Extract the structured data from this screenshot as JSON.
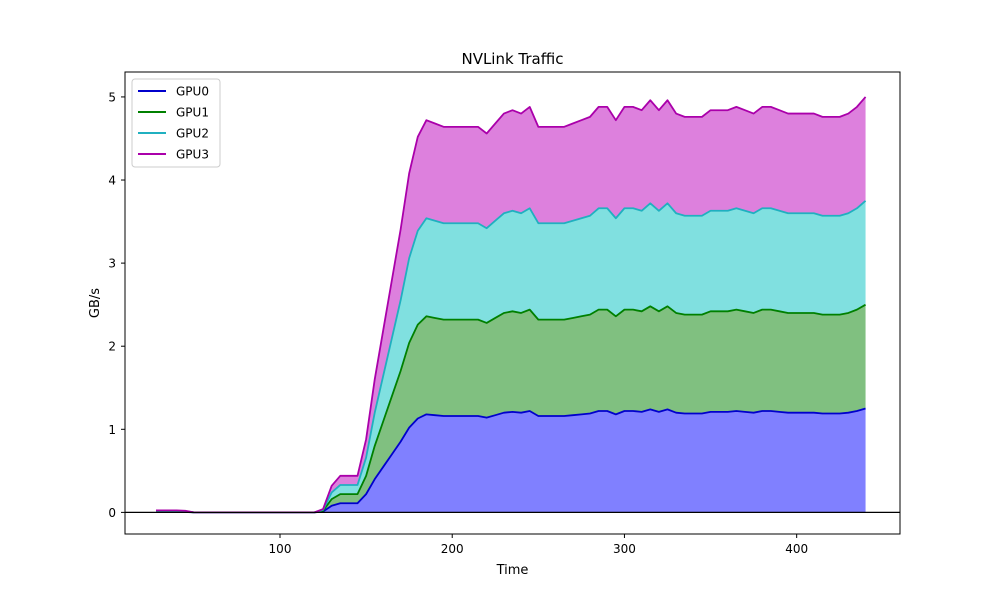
{
  "chart_data": {
    "type": "area",
    "stacked": true,
    "title": "NVLink Traffic",
    "xlabel": "Time",
    "ylabel": "GB/s",
    "xlim": [
      10,
      460
    ],
    "ylim": [
      -0.26,
      5.3
    ],
    "xticks": [
      100,
      200,
      300,
      400
    ],
    "yticks": [
      0,
      1,
      2,
      3,
      4,
      5
    ],
    "grid": false,
    "legend": "top-left",
    "zero_line": true,
    "x": [
      28,
      35,
      40,
      45,
      50,
      55,
      60,
      65,
      70,
      75,
      80,
      85,
      90,
      95,
      100,
      105,
      110,
      115,
      120,
      125,
      130,
      135,
      140,
      145,
      150,
      155,
      160,
      165,
      170,
      175,
      180,
      185,
      190,
      195,
      200,
      205,
      210,
      215,
      220,
      225,
      230,
      235,
      240,
      245,
      250,
      255,
      260,
      265,
      270,
      275,
      280,
      285,
      290,
      295,
      300,
      305,
      310,
      315,
      320,
      325,
      330,
      335,
      340,
      345,
      350,
      355,
      360,
      365,
      370,
      375,
      380,
      385,
      390,
      395,
      400,
      405,
      410,
      415,
      420,
      425,
      430,
      435,
      440
    ],
    "series": [
      {
        "name": "GPU0",
        "color": "#0000cc",
        "fill": "#8080ff",
        "values": [
          0.006,
          0.006,
          0.006,
          0.005,
          0,
          0,
          0,
          0,
          0,
          0,
          0,
          0,
          0,
          0,
          0,
          0,
          0,
          0,
          0,
          0.01,
          0.08,
          0.11,
          0.11,
          0.11,
          0.22,
          0.4,
          0.55,
          0.7,
          0.85,
          1.02,
          1.13,
          1.18,
          1.17,
          1.16,
          1.16,
          1.16,
          1.16,
          1.16,
          1.14,
          1.17,
          1.2,
          1.21,
          1.2,
          1.22,
          1.16,
          1.16,
          1.16,
          1.16,
          1.17,
          1.18,
          1.19,
          1.22,
          1.22,
          1.18,
          1.22,
          1.22,
          1.21,
          1.24,
          1.21,
          1.24,
          1.2,
          1.19,
          1.19,
          1.19,
          1.21,
          1.21,
          1.21,
          1.22,
          1.21,
          1.2,
          1.22,
          1.22,
          1.21,
          1.2,
          1.2,
          1.2,
          1.2,
          1.19,
          1.19,
          1.19,
          1.2,
          1.22,
          1.25
        ]
      },
      {
        "name": "GPU1",
        "color": "#008000",
        "fill": "#80c080",
        "values": [
          0.006,
          0.006,
          0.006,
          0.005,
          0,
          0,
          0,
          0,
          0,
          0,
          0,
          0,
          0,
          0,
          0,
          0,
          0,
          0,
          0,
          0.01,
          0.08,
          0.11,
          0.11,
          0.11,
          0.22,
          0.4,
          0.55,
          0.7,
          0.85,
          1.02,
          1.13,
          1.18,
          1.17,
          1.16,
          1.16,
          1.16,
          1.16,
          1.16,
          1.14,
          1.17,
          1.2,
          1.21,
          1.2,
          1.22,
          1.16,
          1.16,
          1.16,
          1.16,
          1.17,
          1.18,
          1.19,
          1.22,
          1.22,
          1.18,
          1.22,
          1.22,
          1.21,
          1.24,
          1.21,
          1.24,
          1.2,
          1.19,
          1.19,
          1.19,
          1.21,
          1.21,
          1.21,
          1.22,
          1.21,
          1.2,
          1.22,
          1.22,
          1.21,
          1.2,
          1.2,
          1.2,
          1.2,
          1.19,
          1.19,
          1.19,
          1.2,
          1.22,
          1.25
        ]
      },
      {
        "name": "GPU2",
        "color": "#20b0c0",
        "fill": "#80e0e0",
        "values": [
          0.006,
          0.006,
          0.006,
          0.005,
          0,
          0,
          0,
          0,
          0,
          0,
          0,
          0,
          0,
          0,
          0,
          0,
          0,
          0,
          0,
          0.01,
          0.08,
          0.11,
          0.11,
          0.11,
          0.22,
          0.4,
          0.55,
          0.7,
          0.85,
          1.02,
          1.13,
          1.18,
          1.17,
          1.16,
          1.16,
          1.16,
          1.16,
          1.16,
          1.14,
          1.17,
          1.2,
          1.21,
          1.2,
          1.22,
          1.16,
          1.16,
          1.16,
          1.16,
          1.17,
          1.18,
          1.19,
          1.22,
          1.22,
          1.18,
          1.22,
          1.22,
          1.21,
          1.24,
          1.21,
          1.24,
          1.2,
          1.19,
          1.19,
          1.19,
          1.21,
          1.21,
          1.21,
          1.22,
          1.21,
          1.2,
          1.22,
          1.22,
          1.21,
          1.2,
          1.2,
          1.2,
          1.2,
          1.19,
          1.19,
          1.19,
          1.2,
          1.22,
          1.25
        ]
      },
      {
        "name": "GPU3",
        "color": "#aa00aa",
        "fill": "#dd80dd",
        "values": [
          0.006,
          0.006,
          0.006,
          0.005,
          0,
          0,
          0,
          0,
          0,
          0,
          0,
          0,
          0,
          0,
          0,
          0,
          0,
          0,
          0,
          0.01,
          0.08,
          0.11,
          0.11,
          0.11,
          0.22,
          0.4,
          0.55,
          0.7,
          0.85,
          1.02,
          1.13,
          1.18,
          1.17,
          1.16,
          1.16,
          1.16,
          1.16,
          1.16,
          1.14,
          1.17,
          1.2,
          1.21,
          1.2,
          1.22,
          1.16,
          1.16,
          1.16,
          1.16,
          1.17,
          1.18,
          1.19,
          1.22,
          1.22,
          1.18,
          1.22,
          1.22,
          1.21,
          1.24,
          1.21,
          1.24,
          1.2,
          1.19,
          1.19,
          1.19,
          1.21,
          1.21,
          1.21,
          1.22,
          1.21,
          1.2,
          1.22,
          1.22,
          1.21,
          1.2,
          1.2,
          1.2,
          1.2,
          1.19,
          1.19,
          1.19,
          1.2,
          1.22,
          1.25
        ]
      }
    ]
  }
}
